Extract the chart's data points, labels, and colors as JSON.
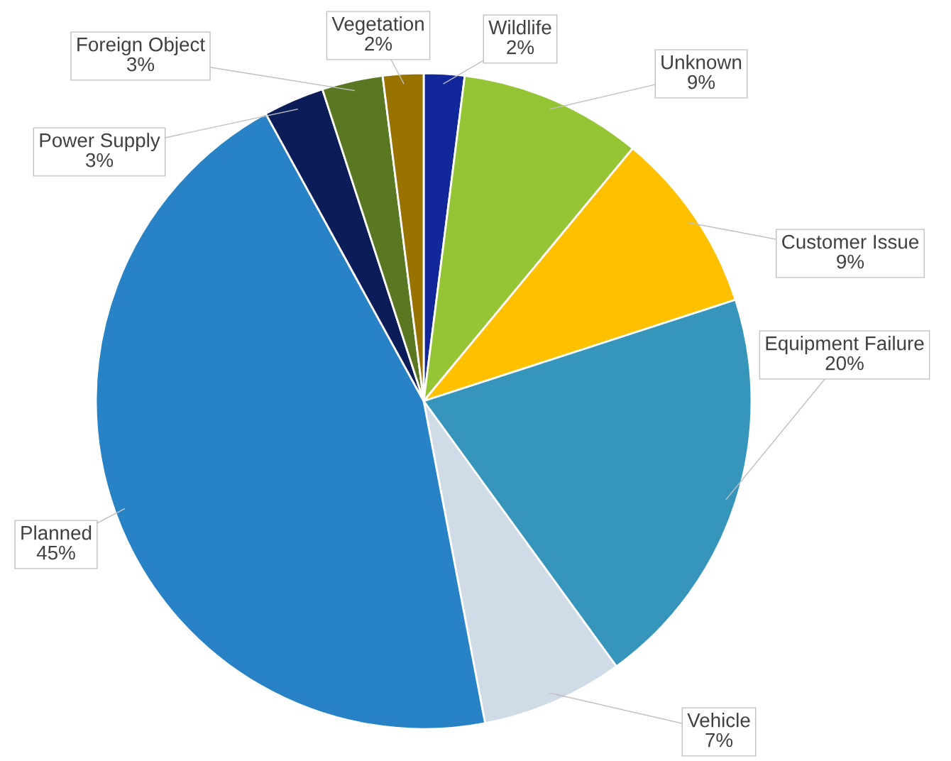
{
  "chart_data": {
    "type": "pie",
    "categories": [
      "Wildlife",
      "Unknown",
      "Customer Issue",
      "Equipment Failure",
      "Vehicle",
      "Planned",
      "Power Supply",
      "Foreign Object",
      "Vegetation"
    ],
    "values": [
      2,
      9,
      9,
      20,
      7,
      45,
      3,
      3,
      2
    ],
    "value_labels": [
      "2%",
      "9%",
      "9%",
      "20%",
      "7%",
      "45%",
      "3%",
      "3%",
      "2%"
    ],
    "colors": [
      "#12279a",
      "#95c535",
      "#ffc000",
      "#3595bb",
      "#cfdbe6",
      "#2783c6",
      "#0b1d58",
      "#5a7721",
      "#997300"
    ],
    "legend": false
  }
}
